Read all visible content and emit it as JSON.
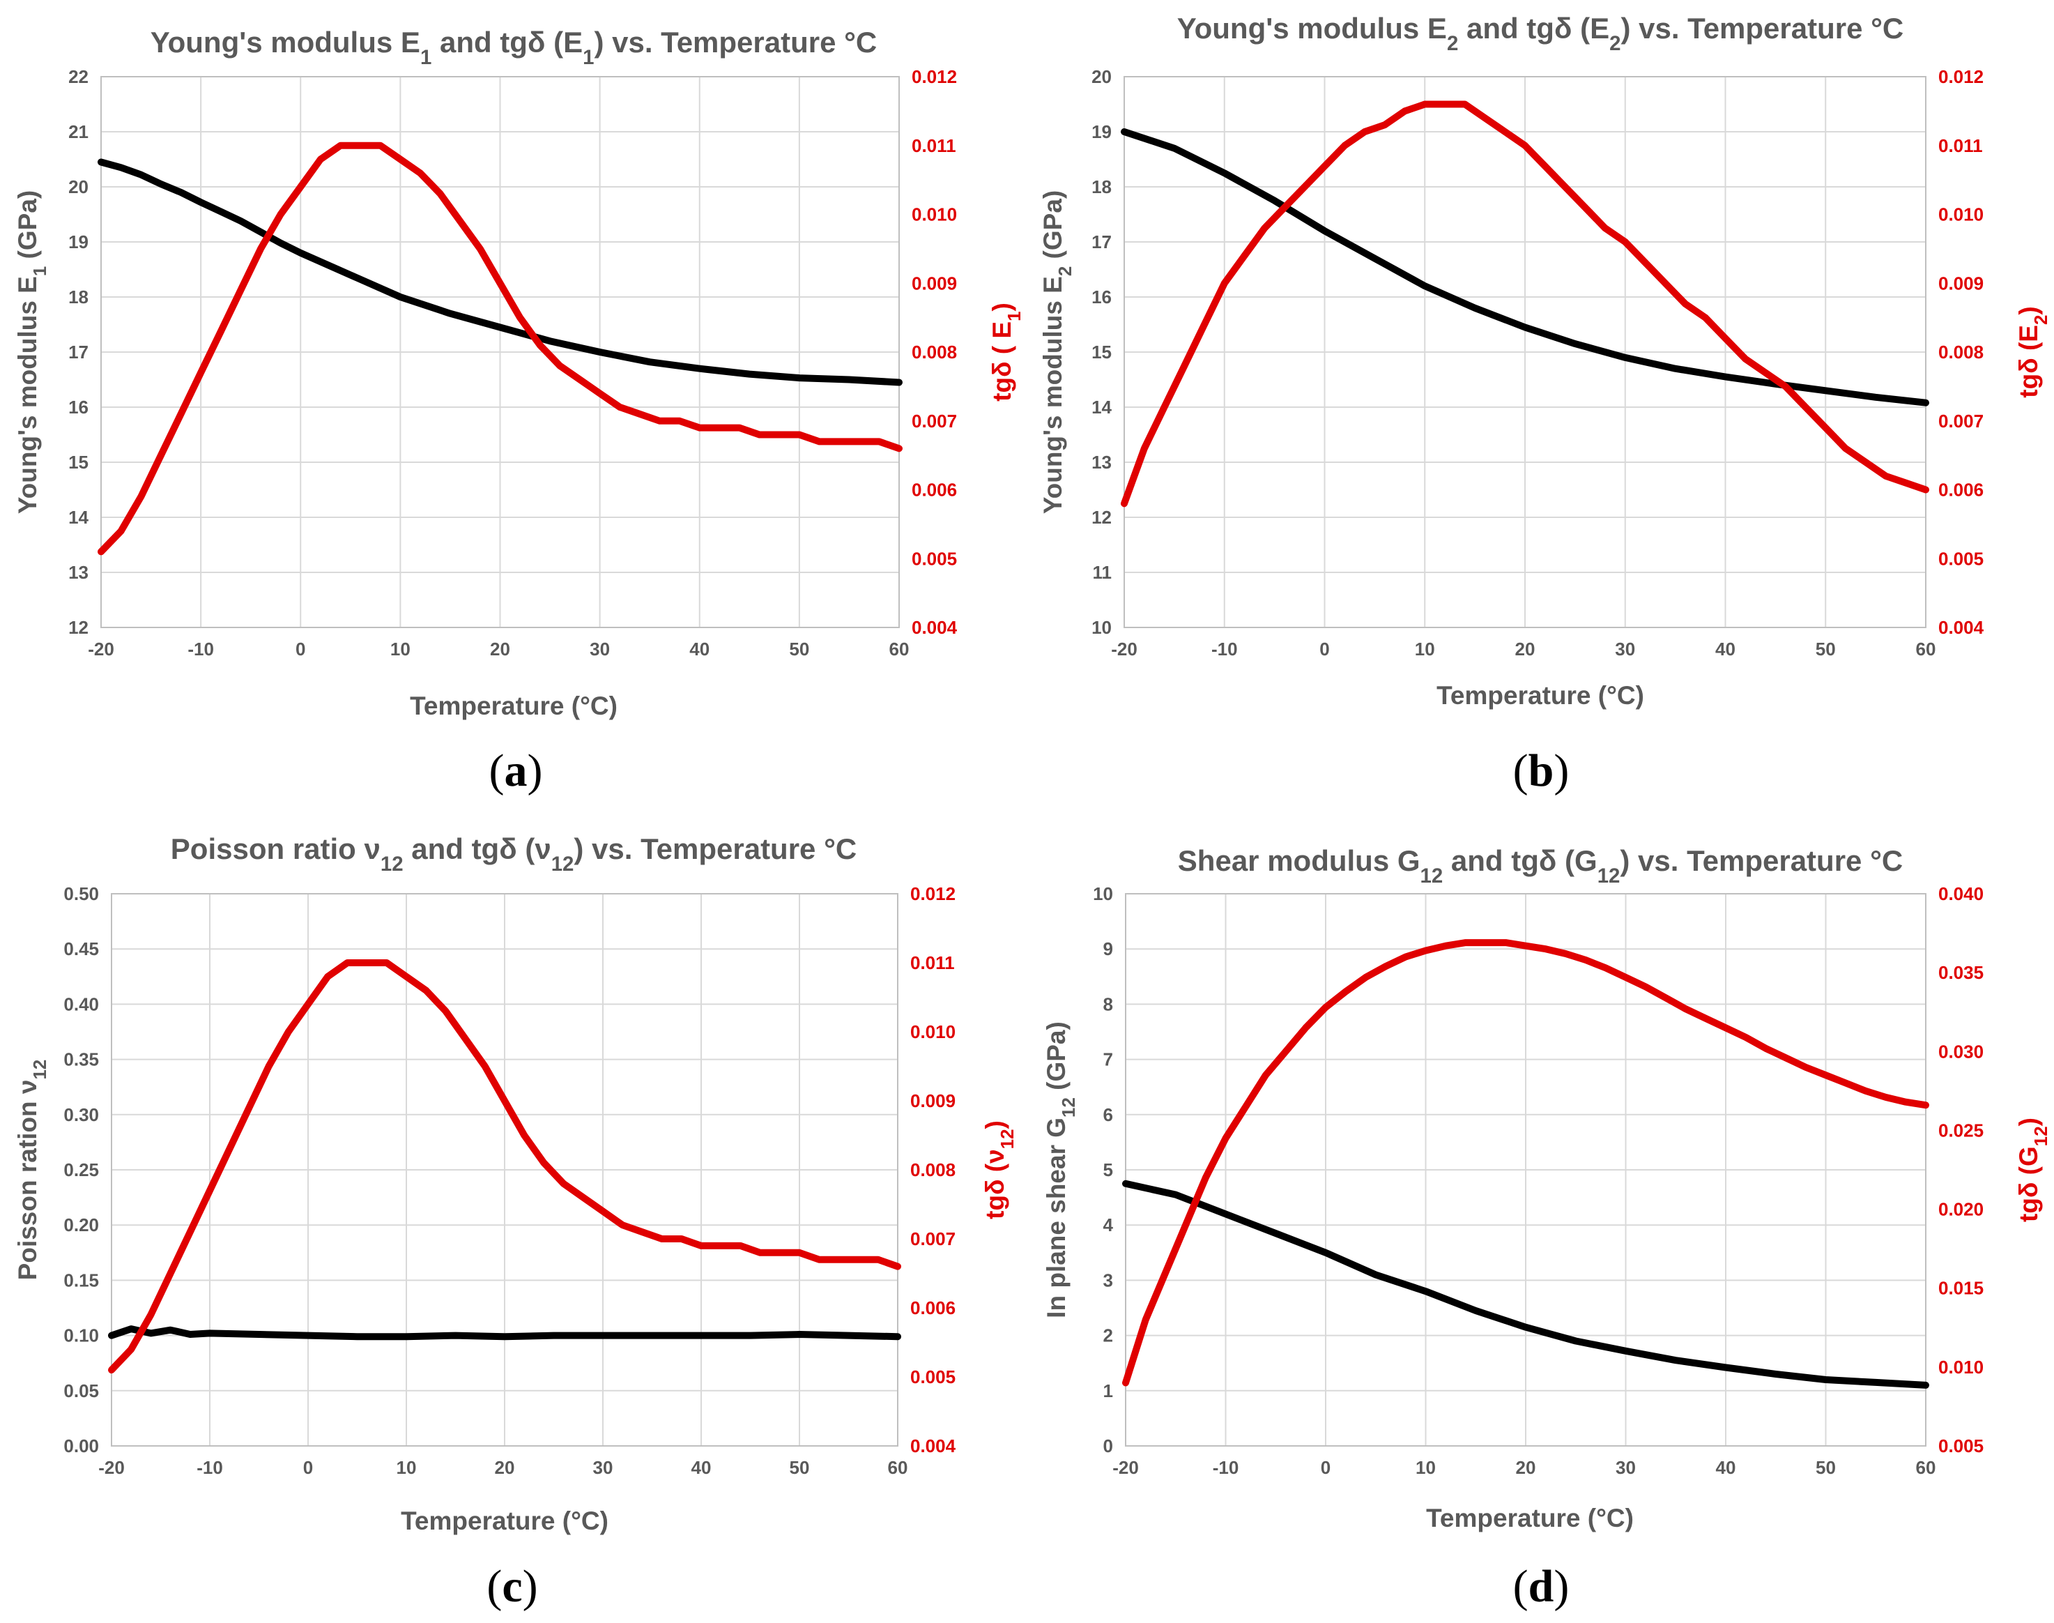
{
  "chart_data": [
    {
      "id": "a",
      "type": "line",
      "caption": "a",
      "title": {
        "pre": "Young's modulus E",
        "sub1": "1",
        "mid": " and tgδ (E",
        "sub2": "1",
        "post": ") vs. Temperature °C"
      },
      "xlabel": "Temperature (°C)",
      "ylabel": {
        "pre": "Young's modulus E",
        "sub": "1",
        "post": " (GPa)"
      },
      "y2label": {
        "pre": "tgδ ( E",
        "sub": "1",
        "post": ")"
      },
      "xlim": [
        -20,
        60
      ],
      "xticks": [
        -20,
        -10,
        0,
        10,
        20,
        30,
        40,
        50,
        60
      ],
      "ylim": [
        12,
        22
      ],
      "yticks": [
        12,
        13,
        14,
        15,
        16,
        17,
        18,
        19,
        20,
        21,
        22
      ],
      "ydec": 0,
      "y2lim": [
        0.004,
        0.012
      ],
      "y2ticks": [
        0.004,
        0.005,
        0.006,
        0.007,
        0.008,
        0.009,
        0.01,
        0.011,
        0.012
      ],
      "y2dec": 3,
      "series": [
        {
          "name": "E1",
          "axis": "left",
          "color": "#000000",
          "x": [
            -20,
            -18,
            -16,
            -14,
            -12,
            -10,
            -8,
            -6,
            -4,
            -2,
            0,
            5,
            10,
            15,
            20,
            25,
            30,
            35,
            40,
            45,
            50,
            55,
            60
          ],
          "y": [
            20.45,
            20.35,
            20.22,
            20.05,
            19.9,
            19.72,
            19.55,
            19.38,
            19.18,
            18.98,
            18.8,
            18.4,
            18.0,
            17.7,
            17.45,
            17.2,
            17.0,
            16.82,
            16.7,
            16.6,
            16.53,
            16.5,
            16.45
          ]
        },
        {
          "name": "tgδ (E1)",
          "axis": "right",
          "color": "#e00000",
          "x": [
            -20,
            -18,
            -16,
            -14,
            -12,
            -10,
            -8,
            -6,
            -4,
            -2,
            0,
            2,
            4,
            6,
            8,
            10,
            12,
            14,
            16,
            18,
            20,
            22,
            24,
            26,
            28,
            30,
            32,
            34,
            36,
            38,
            40,
            42,
            44,
            46,
            48,
            50,
            52,
            54,
            56,
            58,
            60
          ],
          "y": [
            0.0051,
            0.0054,
            0.0059,
            0.0065,
            0.0071,
            0.0077,
            0.0083,
            0.0089,
            0.0095,
            0.01,
            0.0104,
            0.0108,
            0.011,
            0.011,
            0.011,
            0.0108,
            0.0106,
            0.0103,
            0.0099,
            0.0095,
            0.009,
            0.0085,
            0.0081,
            0.0078,
            0.0076,
            0.0074,
            0.0072,
            0.0071,
            0.007,
            0.007,
            0.0069,
            0.0069,
            0.0069,
            0.0068,
            0.0068,
            0.0068,
            0.0067,
            0.0067,
            0.0067,
            0.0067,
            0.0066
          ]
        }
      ]
    },
    {
      "id": "b",
      "type": "line",
      "caption": "b",
      "title": {
        "pre": "Young's modulus E",
        "sub1": "2",
        "mid": " and tgδ (E",
        "sub2": "2",
        "post": ") vs. Temperature °C"
      },
      "xlabel": "Temperature (°C)",
      "ylabel": {
        "pre": "Young's modulus E",
        "sub": "2",
        "post": " (GPa)"
      },
      "y2label": {
        "pre": "tgδ (E",
        "sub": "2",
        "post": ")"
      },
      "xlim": [
        -20,
        60
      ],
      "xticks": [
        -20,
        -10,
        0,
        10,
        20,
        30,
        40,
        50,
        60
      ],
      "ylim": [
        10,
        20
      ],
      "yticks": [
        10,
        11,
        12,
        13,
        14,
        15,
        16,
        17,
        18,
        19,
        20
      ],
      "ydec": 0,
      "y2lim": [
        0.004,
        0.012
      ],
      "y2ticks": [
        0.004,
        0.005,
        0.006,
        0.007,
        0.008,
        0.009,
        0.01,
        0.011,
        0.012
      ],
      "y2dec": 3,
      "series": [
        {
          "name": "E2",
          "axis": "left",
          "color": "#000000",
          "x": [
            -20,
            -15,
            -10,
            -5,
            0,
            5,
            10,
            15,
            20,
            25,
            30,
            35,
            40,
            45,
            50,
            55,
            60
          ],
          "y": [
            19.0,
            18.7,
            18.25,
            17.75,
            17.2,
            16.7,
            16.2,
            15.8,
            15.45,
            15.15,
            14.9,
            14.7,
            14.55,
            14.42,
            14.3,
            14.18,
            14.08
          ]
        },
        {
          "name": "tgδ (E2)",
          "axis": "right",
          "color": "#e00000",
          "x": [
            -20,
            -18,
            -16,
            -14,
            -12,
            -10,
            -8,
            -6,
            -4,
            -2,
            0,
            2,
            4,
            6,
            8,
            10,
            12,
            14,
            16,
            18,
            20,
            22,
            24,
            26,
            28,
            30,
            32,
            34,
            36,
            38,
            40,
            42,
            44,
            46,
            48,
            50,
            52,
            54,
            56,
            58,
            60
          ],
          "y": [
            0.0058,
            0.0066,
            0.0072,
            0.0078,
            0.0084,
            0.009,
            0.0094,
            0.0098,
            0.0101,
            0.0104,
            0.0107,
            0.011,
            0.0112,
            0.0113,
            0.0115,
            0.0116,
            0.0116,
            0.0116,
            0.0114,
            0.0112,
            0.011,
            0.0107,
            0.0104,
            0.0101,
            0.0098,
            0.0096,
            0.0093,
            0.009,
            0.0087,
            0.0085,
            0.0082,
            0.0079,
            0.0077,
            0.0075,
            0.0072,
            0.0069,
            0.0066,
            0.0064,
            0.0062,
            0.0061,
            0.006
          ]
        }
      ]
    },
    {
      "id": "c",
      "type": "line",
      "caption": "c",
      "title": {
        "pre": "Poisson ratio ν",
        "sub1": "12",
        "mid": " and tgδ  (ν",
        "sub2": "12",
        "post": ")  vs. Temperature °C"
      },
      "xlabel": "Temperature (°C)",
      "ylabel": {
        "pre": "Poisson ration ν",
        "sub": "12",
        "post": ""
      },
      "y2label": {
        "pre": "tgδ (ν",
        "sub": "12",
        "post": ")"
      },
      "xlim": [
        -20,
        60
      ],
      "xticks": [
        -20,
        -10,
        0,
        10,
        20,
        30,
        40,
        50,
        60
      ],
      "ylim": [
        0,
        0.5
      ],
      "yticks": [
        0.0,
        0.05,
        0.1,
        0.15,
        0.2,
        0.25,
        0.3,
        0.35,
        0.4,
        0.45,
        0.5
      ],
      "ydec": 2,
      "y2lim": [
        0.004,
        0.012
      ],
      "y2ticks": [
        0.004,
        0.005,
        0.006,
        0.007,
        0.008,
        0.009,
        0.01,
        0.011,
        0.012
      ],
      "y2dec": 3,
      "series": [
        {
          "name": "ν12",
          "axis": "left",
          "color": "#000000",
          "x": [
            -20,
            -18,
            -16,
            -14,
            -12,
            -10,
            -5,
            0,
            5,
            10,
            15,
            20,
            25,
            30,
            35,
            40,
            45,
            50,
            55,
            60
          ],
          "y": [
            0.1,
            0.106,
            0.102,
            0.105,
            0.101,
            0.102,
            0.101,
            0.1,
            0.099,
            0.099,
            0.1,
            0.099,
            0.1,
            0.1,
            0.1,
            0.1,
            0.1,
            0.101,
            0.1,
            0.099
          ]
        },
        {
          "name": "tgδ (ν12)",
          "axis": "right",
          "color": "#e00000",
          "x": [
            -20,
            -18,
            -16,
            -14,
            -12,
            -10,
            -8,
            -6,
            -4,
            -2,
            0,
            2,
            4,
            6,
            8,
            10,
            12,
            14,
            16,
            18,
            20,
            22,
            24,
            26,
            28,
            30,
            32,
            34,
            36,
            38,
            40,
            42,
            44,
            46,
            48,
            50,
            52,
            54,
            56,
            58,
            60
          ],
          "y": [
            0.0051,
            0.0054,
            0.0059,
            0.0065,
            0.0071,
            0.0077,
            0.0083,
            0.0089,
            0.0095,
            0.01,
            0.0104,
            0.0108,
            0.011,
            0.011,
            0.011,
            0.0108,
            0.0106,
            0.0103,
            0.0099,
            0.0095,
            0.009,
            0.0085,
            0.0081,
            0.0078,
            0.0076,
            0.0074,
            0.0072,
            0.0071,
            0.007,
            0.007,
            0.0069,
            0.0069,
            0.0069,
            0.0068,
            0.0068,
            0.0068,
            0.0067,
            0.0067,
            0.0067,
            0.0067,
            0.0066
          ]
        }
      ]
    },
    {
      "id": "d",
      "type": "line",
      "caption": "d",
      "title": {
        "pre": "Shear modulus G",
        "sub1": "12",
        "mid": " and tgδ (G",
        "sub2": "12",
        "post": ") vs. Temperature °C"
      },
      "xlabel": "Temperature (°C)",
      "ylabel": {
        "pre": "In plane shear G",
        "sub": "12",
        "post": " (GPa)"
      },
      "y2label": {
        "pre": "tgδ (G",
        "sub": "12",
        "post": ")"
      },
      "xlim": [
        -20,
        60
      ],
      "xticks": [
        -20,
        -10,
        0,
        10,
        20,
        30,
        40,
        50,
        60
      ],
      "ylim": [
        0,
        10
      ],
      "yticks": [
        0,
        1,
        2,
        3,
        4,
        5,
        6,
        7,
        8,
        9,
        10
      ],
      "ydec": 0,
      "y2lim": [
        0.005,
        0.04
      ],
      "y2ticks": [
        0.005,
        0.01,
        0.015,
        0.02,
        0.025,
        0.03,
        0.035,
        0.04
      ],
      "y2dec": 3,
      "series": [
        {
          "name": "G12",
          "axis": "left",
          "color": "#000000",
          "x": [
            -20,
            -15,
            -10,
            -5,
            0,
            5,
            10,
            15,
            20,
            25,
            30,
            35,
            40,
            45,
            50,
            55,
            60
          ],
          "y": [
            4.75,
            4.55,
            4.2,
            3.85,
            3.5,
            3.1,
            2.8,
            2.45,
            2.15,
            1.9,
            1.72,
            1.55,
            1.42,
            1.3,
            1.2,
            1.15,
            1.1
          ]
        },
        {
          "name": "tgδ (G12)",
          "axis": "right",
          "color": "#e00000",
          "x": [
            -20,
            -18,
            -16,
            -14,
            -12,
            -10,
            -8,
            -6,
            -4,
            -2,
            0,
            2,
            4,
            6,
            8,
            10,
            12,
            14,
            16,
            18,
            20,
            22,
            24,
            26,
            28,
            30,
            32,
            34,
            36,
            38,
            40,
            42,
            44,
            46,
            48,
            50,
            52,
            54,
            56,
            58,
            60
          ],
          "y": [
            0.009,
            0.013,
            0.016,
            0.019,
            0.022,
            0.0245,
            0.0265,
            0.0285,
            0.03,
            0.0315,
            0.0328,
            0.0338,
            0.0347,
            0.0354,
            0.036,
            0.0364,
            0.0367,
            0.0369,
            0.0369,
            0.0369,
            0.0367,
            0.0365,
            0.0362,
            0.0358,
            0.0353,
            0.0347,
            0.0341,
            0.0334,
            0.0327,
            0.0321,
            0.0315,
            0.0309,
            0.0302,
            0.0296,
            0.029,
            0.0285,
            0.028,
            0.0275,
            0.0271,
            0.0268,
            0.0266
          ]
        }
      ]
    }
  ]
}
